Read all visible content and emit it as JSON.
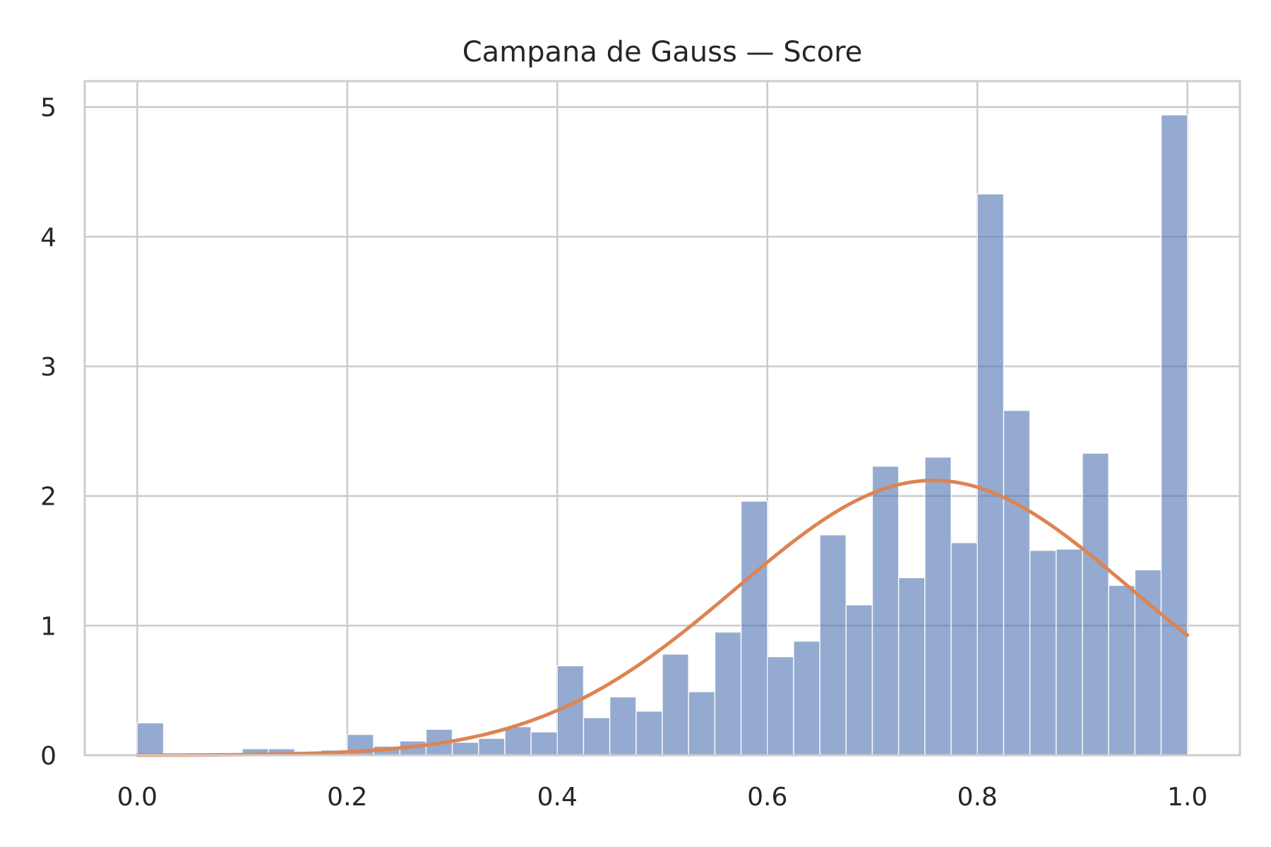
{
  "chart_data": {
    "type": "bar",
    "title": "Campana de Gauss — Score",
    "xlabel": "",
    "ylabel": "",
    "xlim": [
      -0.05,
      1.05
    ],
    "ylim": [
      0,
      5.2
    ],
    "xticks": [
      "0.0",
      "0.2",
      "0.4",
      "0.6",
      "0.8",
      "1.0"
    ],
    "xtick_values": [
      0.0,
      0.2,
      0.4,
      0.6,
      0.8,
      1.0
    ],
    "yticks": [
      "0",
      "1",
      "2",
      "3",
      "4",
      "5"
    ],
    "ytick_values": [
      0,
      1,
      2,
      3,
      4,
      5
    ],
    "grid": true,
    "bin_edges": [
      0.0,
      0.025,
      0.05,
      0.075,
      0.1,
      0.125,
      0.15,
      0.175,
      0.2,
      0.225,
      0.25,
      0.275,
      0.3,
      0.325,
      0.35,
      0.375,
      0.4,
      0.425,
      0.45,
      0.475,
      0.5,
      0.525,
      0.55,
      0.575,
      0.6,
      0.625,
      0.65,
      0.675,
      0.7,
      0.725,
      0.75,
      0.775,
      0.8,
      0.825,
      0.85,
      0.875,
      0.9,
      0.925,
      0.95,
      0.975,
      1.0
    ],
    "values": [
      0.25,
      0.0,
      0.0,
      0.0,
      0.05,
      0.05,
      0.03,
      0.04,
      0.16,
      0.07,
      0.11,
      0.2,
      0.1,
      0.13,
      0.22,
      0.18,
      0.69,
      0.29,
      0.45,
      0.34,
      0.78,
      0.49,
      0.95,
      1.96,
      0.76,
      0.88,
      1.7,
      1.16,
      2.23,
      1.37,
      2.3,
      1.64,
      4.33,
      2.66,
      1.58,
      1.59,
      2.33,
      1.31,
      1.43,
      4.94
    ],
    "series": [
      {
        "name": "",
        "type": "bar",
        "color": "#4c72b0"
      },
      {
        "name": "",
        "type": "line",
        "color": "#dd8452",
        "mean": 0.758,
        "std": 0.188,
        "peak": 2.12
      }
    ]
  },
  "colors": {
    "bars": "#4c72b0",
    "curve": "#dd8452",
    "grid": "#cccccc",
    "text": "#262626"
  }
}
